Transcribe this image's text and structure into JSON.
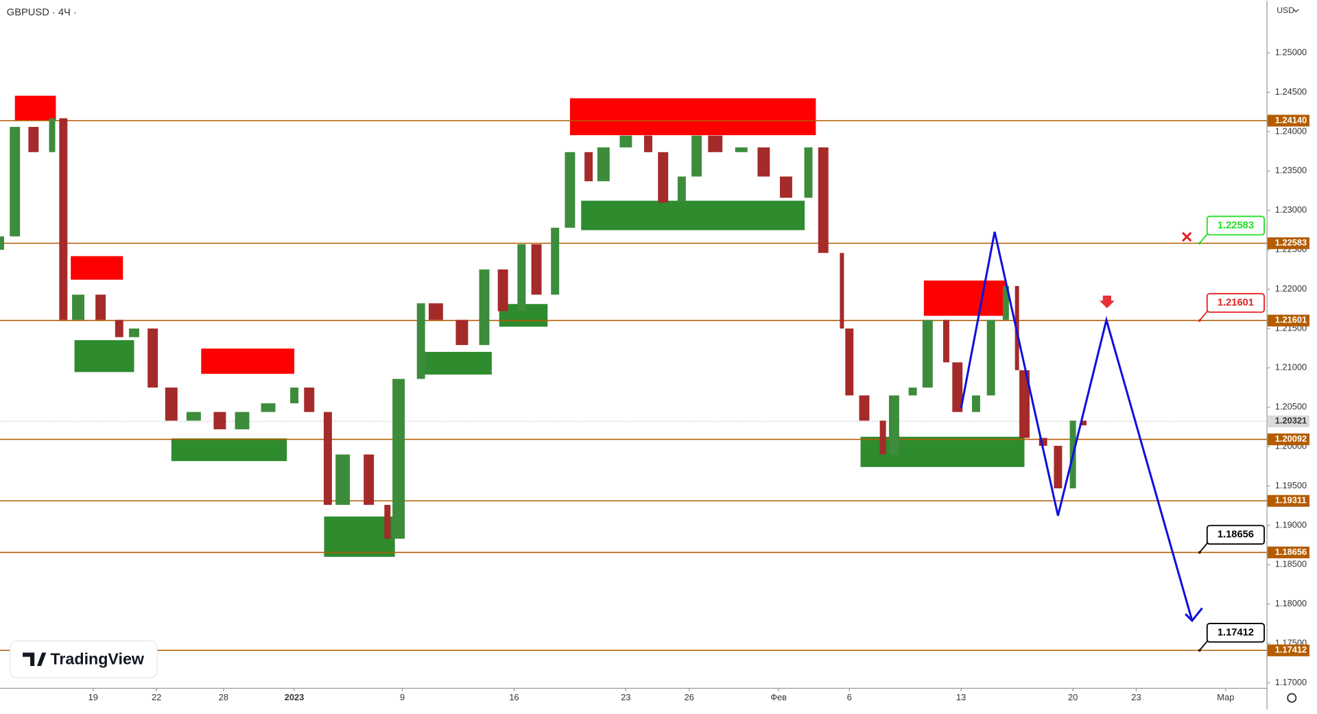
{
  "chart_data": {
    "type": "candlestick",
    "title": "GBPUSD · 4Ч ·",
    "currency": "USD",
    "watermark": "TradingView",
    "up_color": "#3c8c3c",
    "down_color": "#a52a2a",
    "x": [
      0,
      4,
      9,
      14,
      17,
      21,
      27,
      32,
      36,
      41,
      46,
      52,
      59,
      65,
      72,
      79,
      83,
      88,
      92,
      99,
      104,
      107,
      113,
      117,
      124,
      130,
      135,
      140,
      144,
      149,
      153,
      158,
      162,
      168,
      174,
      178,
      183,
      187,
      192,
      199,
      205,
      211,
      217,
      221,
      226,
      228,
      232,
      237,
      240,
      245,
      249,
      254,
      257,
      262,
      266,
      270,
      273,
      275,
      280,
      284,
      288,
      291
    ],
    "open": [
      1.225,
      1.2267,
      1.2406,
      1.2374,
      1.2417,
      1.2161,
      1.2193,
      1.2161,
      1.2139,
      1.215,
      1.2075,
      1.2033,
      1.2044,
      1.2022,
      1.2044,
      1.2055,
      1.2075,
      1.2044,
      1.1926,
      1.199,
      1.1926,
      1.1883,
      1.2086,
      1.2182,
      1.2161,
      1.2129,
      1.2225,
      1.2172,
      1.2257,
      1.2193,
      1.2278,
      1.2374,
      1.2337,
      1.238,
      1.2395,
      1.2374,
      1.231,
      1.2343,
      1.2395,
      1.2374,
      1.238,
      1.2343,
      1.2316,
      1.238,
      1.2246,
      1.215,
      1.2065,
      1.2033,
      1.199,
      1.2065,
      1.2075,
      1.2161,
      1.2107,
      1.2044,
      1.2065,
      1.2161,
      1.2204,
      1.2097,
      1.2011,
      1.2001,
      1.1947,
      1.2033
    ],
    "close": [
      1.2267,
      1.2406,
      1.2374,
      1.2417,
      1.2161,
      1.2193,
      1.2161,
      1.2139,
      1.215,
      1.2075,
      1.2033,
      1.2044,
      1.2022,
      1.2044,
      1.2055,
      1.2075,
      1.2044,
      1.1926,
      1.199,
      1.1926,
      1.1883,
      1.2086,
      1.2182,
      1.2161,
      1.2129,
      1.2225,
      1.2172,
      1.2257,
      1.2193,
      1.2278,
      1.2374,
      1.2337,
      1.238,
      1.2395,
      1.2374,
      1.231,
      1.2343,
      1.2395,
      1.2374,
      1.238,
      1.2343,
      1.2316,
      1.238,
      1.2246,
      1.215,
      1.2065,
      1.2033,
      1.199,
      1.2065,
      1.2075,
      1.2161,
      1.2107,
      1.2044,
      1.2065,
      1.2161,
      1.2204,
      1.2097,
      1.2011,
      1.2001,
      1.1947,
      1.2033,
      1.2027
    ],
    "xlim": [
      0,
      340
    ],
    "ylim": [
      1.16936,
      1.25661
    ],
    "xticks": [
      {
        "value": 25,
        "label": "19"
      },
      {
        "value": 42,
        "label": "22"
      },
      {
        "value": 60,
        "label": "28"
      },
      {
        "value": 79,
        "label": "2023"
      },
      {
        "value": 108,
        "label": "9"
      },
      {
        "value": 138,
        "label": "16"
      },
      {
        "value": 168,
        "label": "23"
      },
      {
        "value": 185,
        "label": "26"
      },
      {
        "value": 209,
        "label": "Фев"
      },
      {
        "value": 228,
        "label": "6"
      },
      {
        "value": 258,
        "label": "13"
      },
      {
        "value": 288,
        "label": "20"
      },
      {
        "value": 305,
        "label": "23"
      },
      {
        "value": 329,
        "label": "Мар"
      }
    ],
    "yticks": [
      {
        "value": 1.17,
        "label": "1.17000"
      },
      {
        "value": 1.175,
        "label": "1.17500"
      },
      {
        "value": 1.18,
        "label": "1.18000"
      },
      {
        "value": 1.185,
        "label": "1.18500"
      },
      {
        "value": 1.19,
        "label": "1.19000"
      },
      {
        "value": 1.195,
        "label": "1.19500"
      },
      {
        "value": 1.2,
        "label": "1.20000"
      },
      {
        "value": 1.205,
        "label": "1.20500"
      },
      {
        "value": 1.21,
        "label": "1.21000"
      },
      {
        "value": 1.215,
        "label": "1.21500"
      },
      {
        "value": 1.22,
        "label": "1.22000"
      },
      {
        "value": 1.225,
        "label": "1.22500"
      },
      {
        "value": 1.23,
        "label": "1.23000"
      },
      {
        "value": 1.235,
        "label": "1.23500"
      },
      {
        "value": 1.24,
        "label": "1.24000"
      },
      {
        "value": 1.245,
        "label": "1.24500"
      },
      {
        "value": 1.25,
        "label": "1.25000"
      }
    ],
    "levels": [
      {
        "value": 1.2414,
        "label": "1.24140"
      },
      {
        "value": 1.22583,
        "label": "1.22583"
      },
      {
        "value": 1.21601,
        "label": "1.21601"
      },
      {
        "value": 1.20092,
        "label": "1.20092"
      },
      {
        "value": 1.19311,
        "label": "1.19311"
      },
      {
        "value": 1.18656,
        "label": "1.18656"
      },
      {
        "value": 1.17412,
        "label": "1.17412"
      }
    ],
    "level_color": "#b35c00",
    "last_price": {
      "value": 1.20321,
      "label": "1.20321"
    },
    "callouts": [
      {
        "x": 322,
        "value": 1.22583,
        "label": "1.22583",
        "color": "#22dd22"
      },
      {
        "x": 322,
        "value": 1.21601,
        "label": "1.21601",
        "color": "#e02020"
      },
      {
        "x": 322,
        "value": 1.18656,
        "label": "1.18656",
        "color": "#000000"
      },
      {
        "x": 322,
        "value": 1.17412,
        "label": "1.17412",
        "color": "#000000"
      }
    ],
    "supply_zones": [
      [
        4,
        15,
        1.24456,
        1.24136
      ],
      [
        19,
        33,
        1.22419,
        1.2212
      ],
      [
        54,
        79,
        1.21245,
        1.20925
      ],
      [
        153,
        219,
        1.24424,
        1.23955
      ],
      [
        248,
        270,
        1.22109,
        1.21661
      ]
    ],
    "demand_zones": [
      [
        20,
        36,
        1.21352,
        1.20947
      ],
      [
        46,
        77,
        1.20104,
        1.19816
      ],
      [
        87,
        106,
        1.19112,
        1.186
      ],
      [
        112,
        132,
        1.21203,
        1.20915
      ],
      [
        134,
        147,
        1.21811,
        1.21523
      ],
      [
        156,
        216,
        1.23123,
        1.22749
      ],
      [
        231,
        275,
        1.20125,
        1.19741
      ]
    ],
    "projection": {
      "x": [
        258,
        267,
        284,
        297,
        320
      ],
      "values": [
        1.20488,
        1.22728,
        1.19123,
        1.21608,
        1.17789
      ],
      "color": "#1010dd"
    }
  }
}
